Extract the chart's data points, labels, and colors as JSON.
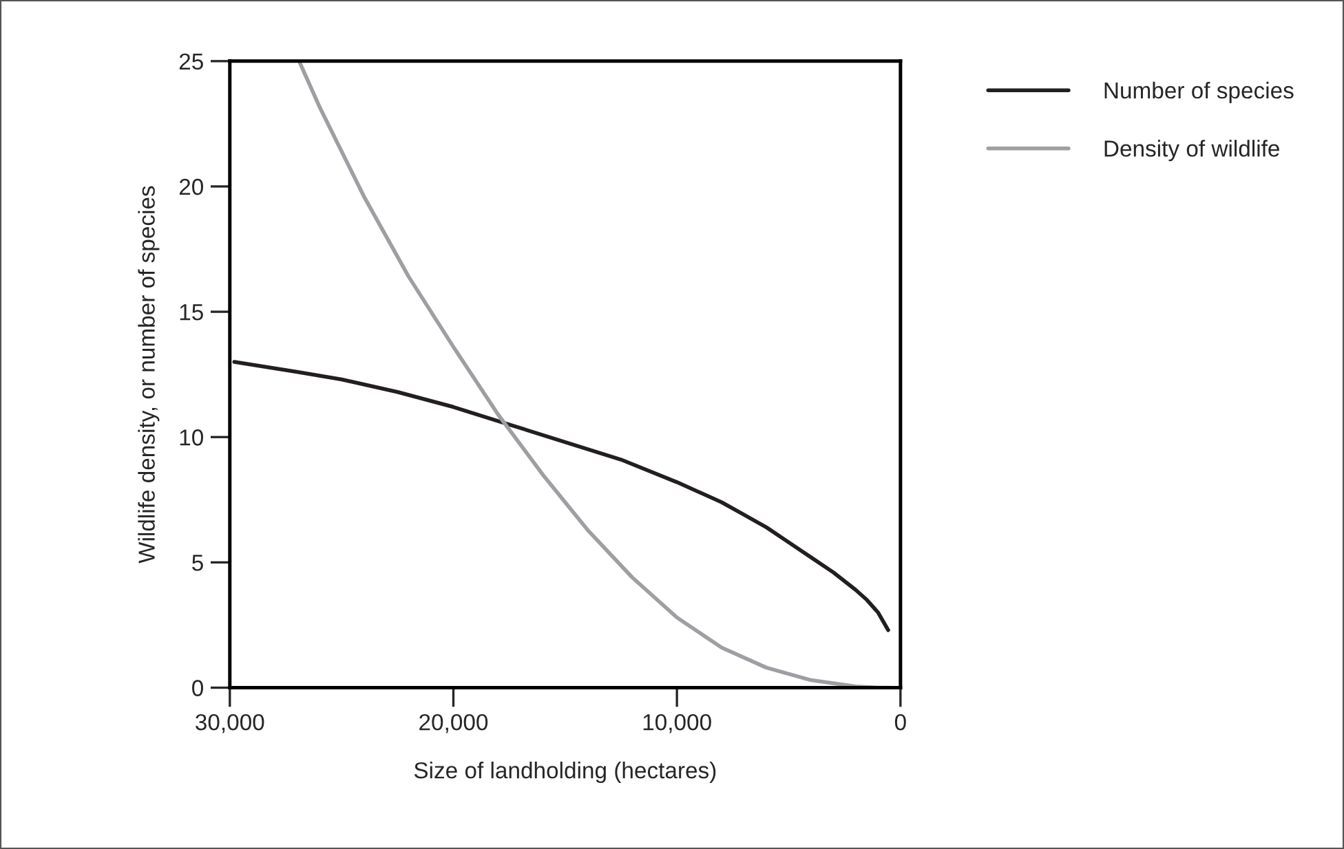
{
  "chart_data": {
    "type": "line",
    "xlabel": "Size of landholding (hectares)",
    "ylabel": "Wildlife density, or number of species",
    "xlim": [
      30000,
      0
    ],
    "ylim": [
      0,
      25
    ],
    "xticks": [
      {
        "value": 30000,
        "label": "30,000"
      },
      {
        "value": 20000,
        "label": "20,000"
      },
      {
        "value": 10000,
        "label": "10,000"
      },
      0
    ],
    "yticks": [
      0,
      5,
      10,
      15,
      20,
      25
    ],
    "grid": false,
    "legend": "right",
    "marker": "none",
    "line_style": "solid",
    "series": [
      {
        "name": "Number of species",
        "color": "#231f20",
        "x": [
          29800,
          27000,
          25000,
          22500,
          20000,
          17500,
          15000,
          12500,
          10000,
          8000,
          7000,
          6000,
          5000,
          4000,
          3000,
          2000,
          1500,
          1000,
          550
        ],
        "values": [
          13,
          12.6,
          12.3,
          11.8,
          11.2,
          10.5,
          9.8,
          9.1,
          8.2,
          7.4,
          6.9,
          6.4,
          5.8,
          5.2,
          4.6,
          3.9,
          3.5,
          3.0,
          2.3
        ]
      },
      {
        "name": "Density of wildlife",
        "color": "#9d9fa2",
        "x": [
          26900,
          26000,
          24000,
          22000,
          20000,
          18000,
          16000,
          14000,
          12000,
          10000,
          8000,
          6000,
          4000,
          2000,
          1000,
          500
        ],
        "values": [
          25,
          23.2,
          19.6,
          16.4,
          13.6,
          10.9,
          8.5,
          6.3,
          4.4,
          2.8,
          1.6,
          0.8,
          0.3,
          0.05,
          0,
          0
        ]
      }
    ]
  }
}
